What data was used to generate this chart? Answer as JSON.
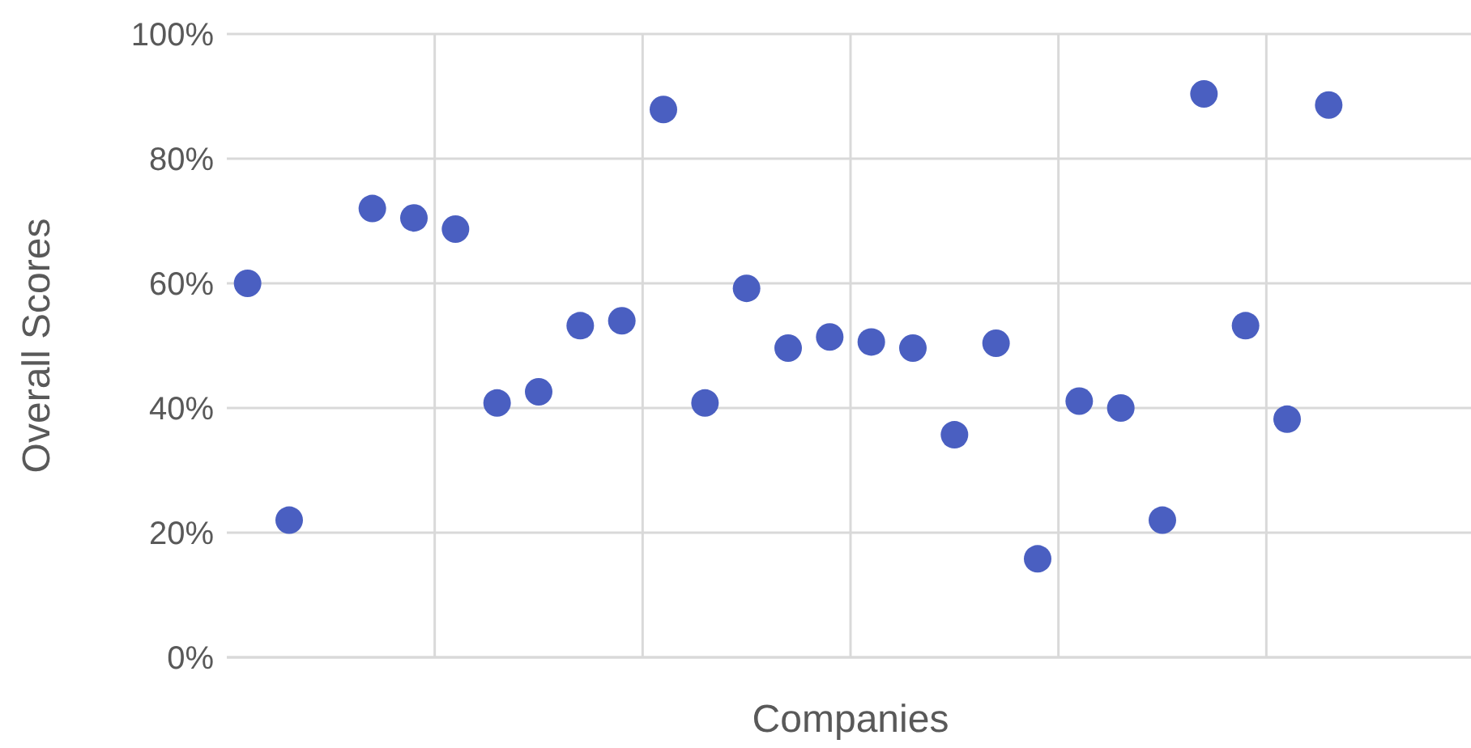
{
  "chart_data": {
    "type": "scatter",
    "xlabel": "Companies",
    "ylabel": "Overall Scores",
    "categories": [
      null,
      null,
      null,
      null,
      null,
      null,
      null,
      null,
      null,
      null,
      null,
      null,
      null,
      null,
      null,
      null,
      null,
      null,
      null,
      null,
      null,
      null,
      null,
      null,
      null,
      null,
      null,
      null,
      null,
      null
    ],
    "series": [
      {
        "color": "#4a5fc1",
        "values": [
          60,
          22,
          null,
          72,
          70.5,
          68.7,
          40.8,
          42.6,
          53.2,
          54,
          87.9,
          40.8,
          59.2,
          49.6,
          51.4,
          50.6,
          49.6,
          35.7,
          50.4,
          15.8,
          41.1,
          40,
          22,
          90.4,
          53.2,
          38.2,
          88.6,
          null,
          null,
          null
        ]
      }
    ],
    "ylim": [
      0,
      100
    ],
    "yticks": [
      {
        "value": 0,
        "label": "0%"
      },
      {
        "value": 20,
        "label": "20%"
      },
      {
        "value": 40,
        "label": "40%"
      },
      {
        "value": 60,
        "label": "60%"
      },
      {
        "value": 80,
        "label": "80%"
      },
      {
        "value": 100,
        "label": "100%"
      }
    ],
    "tick_labels": "y",
    "grid": true,
    "marker": "circle",
    "legend": false
  }
}
